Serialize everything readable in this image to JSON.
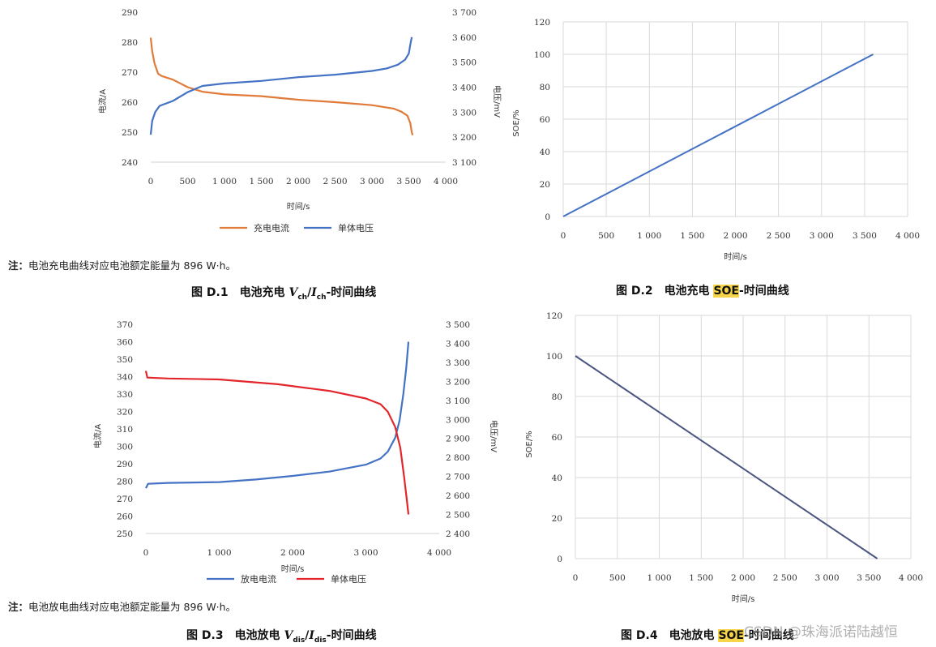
{
  "colors": {
    "orange": "#e07b39",
    "blue": "#4472c4",
    "red": "#e3262b",
    "slate": "#4a5680",
    "highlight": "#f7d54a",
    "grid": "#d9d9d9"
  },
  "chart_data": [
    {
      "type": "line",
      "xlabel": "时间/s",
      "ylabel_left": "电流/A",
      "ylabel_right": "电压/mV",
      "xlim": [
        0,
        4000
      ],
      "ylim_left": [
        240,
        290
      ],
      "ylim_right": [
        3100,
        3700
      ],
      "x_ticks": [
        "0",
        "500",
        "1 000",
        "1 500",
        "2 000",
        "2 500",
        "3 000",
        "3 500",
        "4 000"
      ],
      "yl_ticks": [
        "240",
        "250",
        "260",
        "270",
        "280",
        "290"
      ],
      "yr_ticks": [
        "3 100",
        "3 200",
        "3 300",
        "3 400",
        "3 500",
        "3 600",
        "3 700"
      ],
      "grid": false,
      "legend_position": "bottom",
      "series": [
        {
          "name": "充电电流",
          "axis": "left",
          "color": "#e07b39",
          "points": [
            [
              0,
              281.5
            ],
            [
              20,
              277
            ],
            [
              50,
              273
            ],
            [
              100,
              269.5
            ],
            [
              150,
              268.7
            ],
            [
              300,
              267.5
            ],
            [
              500,
              265
            ],
            [
              700,
              263.5
            ],
            [
              1000,
              262.6
            ],
            [
              1500,
              262
            ],
            [
              2000,
              260.8
            ],
            [
              2500,
              260
            ],
            [
              3000,
              259
            ],
            [
              3300,
              257.8
            ],
            [
              3400,
              256.8
            ],
            [
              3480,
              255.5
            ],
            [
              3520,
              253
            ],
            [
              3540,
              250
            ],
            [
              3550,
              249
            ]
          ]
        },
        {
          "name": "单体电压",
          "axis": "right",
          "color": "#4472c4",
          "points": [
            [
              0,
              3210
            ],
            [
              20,
              3265
            ],
            [
              60,
              3300
            ],
            [
              120,
              3325
            ],
            [
              300,
              3345
            ],
            [
              500,
              3380
            ],
            [
              700,
              3405
            ],
            [
              1000,
              3415
            ],
            [
              1500,
              3425
            ],
            [
              2000,
              3440
            ],
            [
              2500,
              3450
            ],
            [
              3000,
              3465
            ],
            [
              3200,
              3475
            ],
            [
              3350,
              3490
            ],
            [
              3450,
              3510
            ],
            [
              3500,
              3535
            ],
            [
              3520,
              3570
            ],
            [
              3540,
              3600
            ]
          ]
        }
      ]
    },
    {
      "type": "line",
      "xlabel": "时间/s",
      "ylabel": "SOE/%",
      "xlim": [
        0,
        4000
      ],
      "ylim": [
        0,
        120
      ],
      "x_ticks": [
        "0",
        "500",
        "1 000",
        "1 500",
        "2 000",
        "2 500",
        "3 000",
        "3 500",
        "4 000"
      ],
      "y_ticks": [
        "0",
        "20",
        "40",
        "60",
        "80",
        "100",
        "120"
      ],
      "grid": true,
      "series": [
        {
          "color": "#4472c4",
          "points": [
            [
              0,
              0
            ],
            [
              3600,
              100
            ]
          ]
        }
      ]
    },
    {
      "type": "line",
      "xlabel": "时间/s",
      "ylabel_left": "电流/A",
      "ylabel_right": "电压/mV",
      "xlim": [
        0,
        4000
      ],
      "ylim_left": [
        250,
        370
      ],
      "ylim_right": [
        2400,
        3500
      ],
      "x_ticks": [
        "0",
        "1 000",
        "2 000",
        "3 000",
        "4 000"
      ],
      "yl_ticks": [
        "250",
        "260",
        "270",
        "280",
        "290",
        "300",
        "310",
        "320",
        "330",
        "340",
        "350",
        "360",
        "370"
      ],
      "yr_ticks": [
        "2 400",
        "2 500",
        "2 600",
        "2 700",
        "2 800",
        "2 900",
        "3 000",
        "3 100",
        "3 200",
        "3 300",
        "3 400",
        "3 500"
      ],
      "grid": false,
      "legend_position": "bottom",
      "series": [
        {
          "name": "放电电流",
          "axis": "left",
          "color": "#4472c4",
          "points": [
            [
              0,
              276
            ],
            [
              30,
              278.5
            ],
            [
              300,
              279
            ],
            [
              1000,
              279.5
            ],
            [
              1500,
              281
            ],
            [
              2000,
              283
            ],
            [
              2500,
              285.5
            ],
            [
              3000,
              289.5
            ],
            [
              3200,
              293
            ],
            [
              3300,
              297
            ],
            [
              3400,
              305
            ],
            [
              3460,
              315
            ],
            [
              3510,
              330
            ],
            [
              3550,
              345
            ],
            [
              3580,
              360
            ]
          ]
        },
        {
          "name": "单体电压",
          "axis": "right",
          "color": "#e3262b",
          "points": [
            [
              0,
              3255
            ],
            [
              20,
              3220
            ],
            [
              300,
              3215
            ],
            [
              1000,
              3210
            ],
            [
              1800,
              3185
            ],
            [
              2500,
              3150
            ],
            [
              3000,
              3110
            ],
            [
              3200,
              3080
            ],
            [
              3300,
              3040
            ],
            [
              3400,
              2960
            ],
            [
              3470,
              2850
            ],
            [
              3520,
              2700
            ],
            [
              3560,
              2570
            ],
            [
              3580,
              2500
            ]
          ]
        }
      ]
    },
    {
      "type": "line",
      "xlabel": "时间/s",
      "ylabel": "SOE/%",
      "xlim": [
        0,
        4000
      ],
      "ylim": [
        0,
        120
      ],
      "x_ticks": [
        "0",
        "500",
        "1 000",
        "1 500",
        "2 000",
        "2 500",
        "3 000",
        "3 500",
        "4 000"
      ],
      "y_ticks": [
        "0",
        "20",
        "40",
        "60",
        "80",
        "100",
        "120"
      ],
      "grid": true,
      "series": [
        {
          "color": "#4a5680",
          "points": [
            [
              0,
              100
            ],
            [
              3600,
              0
            ]
          ]
        }
      ]
    }
  ],
  "notes": {
    "d1": {
      "prefix": "注：",
      "text": "电池充电曲线对应电池额定能量为 896 W·h。"
    },
    "d3": {
      "prefix": "注：",
      "text": "电池放电曲线对应电池额定能量为 896 W·h。"
    }
  },
  "captions": {
    "d1": {
      "fig": "图 D.1",
      "pre": "电池充电 ",
      "v": "V",
      "vsub": "ch",
      "slash": "/",
      "i": "I",
      "isub": "ch",
      "post": "-时间曲线"
    },
    "d2": {
      "fig": "图 D.2",
      "pre": "电池充电 ",
      "hl": "SOE",
      "post": "-时间曲线"
    },
    "d3": {
      "fig": "图 D.3",
      "pre": "电池放电 ",
      "v": "V",
      "vsub": "dis",
      "slash": "/",
      "i": "I",
      "isub": "dis",
      "post": "-时间曲线"
    },
    "d4": {
      "fig": "图 D.4",
      "pre": "电池放电 ",
      "hl": "SOE",
      "post": "-时间曲线"
    }
  },
  "watermark": "CSDN @珠海派诺陆越恒"
}
